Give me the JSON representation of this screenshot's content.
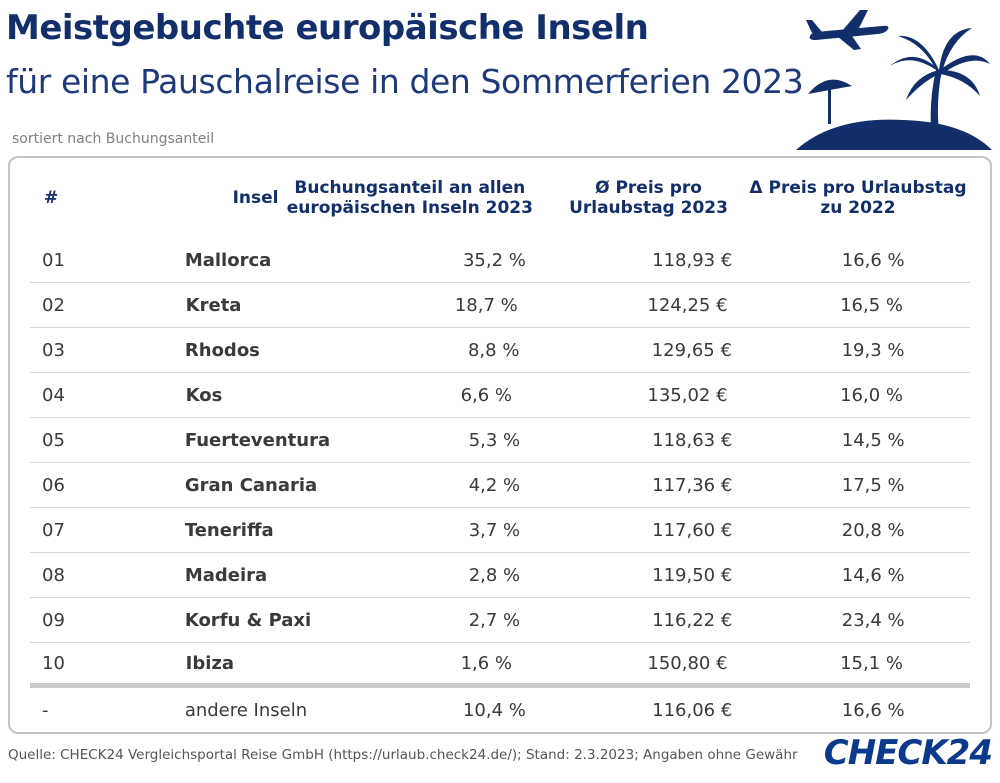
{
  "header": {
    "title": "Meistgebuchte europäische Inseln",
    "subtitle": "für eine Pauschalreise in den Sommerferien 2023",
    "sort_note": "sortiert nach Buchungsanteil"
  },
  "colors": {
    "navy": "#122f6b",
    "logo_blue": "#0b3a8c"
  },
  "icons": [
    "airplane-icon",
    "palm-tree-icon",
    "beach-umbrella-icon",
    "island-icon"
  ],
  "chart_data": {
    "type": "table",
    "columns": [
      "#",
      "Insel",
      "Buchungsanteil an allen europäischen Inseln 2023",
      "Ø Preis pro Urlaubstag 2023",
      "Δ Preis pro Urlaubstag zu 2022"
    ],
    "rows": [
      [
        "01",
        "Mallorca",
        "35,2 %",
        "118,93 €",
        "16,6 %"
      ],
      [
        "02",
        "Kreta",
        "18,7 %",
        "124,25 €",
        "16,5 %"
      ],
      [
        "03",
        "Rhodos",
        "8,8 %",
        "129,65 €",
        "19,3 %"
      ],
      [
        "04",
        "Kos",
        "6,6 %",
        "135,02 €",
        "16,0 %"
      ],
      [
        "05",
        "Fuerteventura",
        "5,3 %",
        "118,63 €",
        "14,5 %"
      ],
      [
        "06",
        "Gran Canaria",
        "4,2 %",
        "117,36 €",
        "17,5 %"
      ],
      [
        "07",
        "Teneriffa",
        "3,7 %",
        "117,60 €",
        "20,8 %"
      ],
      [
        "08",
        "Madeira",
        "2,8 %",
        "119,50 €",
        "14,6 %"
      ],
      [
        "09",
        "Korfu & Paxi",
        "2,7 %",
        "116,22 €",
        "23,4 %"
      ],
      [
        "10",
        "Ibiza",
        "1,6 %",
        "150,80 €",
        "15,1 %"
      ]
    ],
    "other_row": [
      "-",
      "andere Inseln",
      "10,4 %",
      "116,06 €",
      "16,6 %"
    ]
  },
  "table_head": {
    "rank": "#",
    "island": "Insel",
    "share_line1": "Buchungsanteil an allen",
    "share_line2": "europäischen Inseln 2023",
    "price_line1": "Ø Preis pro",
    "price_line2": "Urlaubstag 2023",
    "delta_line1": "Δ Preis pro Urlaubstag",
    "delta_line2": "zu 2022"
  },
  "footer": {
    "source": "Quelle: CHECK24 Vergleichsportal Reise GmbH (https://urlaub.check24.de/); Stand: 2.3.2023; Angaben ohne Gewähr",
    "logo": "CHECK24"
  }
}
